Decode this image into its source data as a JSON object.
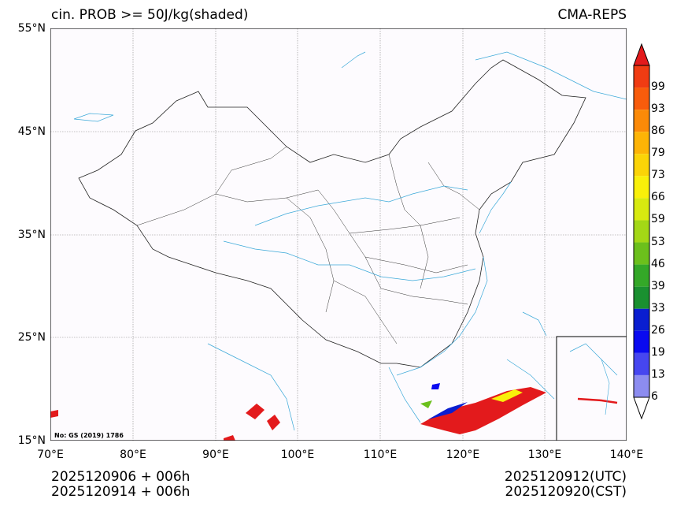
{
  "title_left": "cin. PROB >= 50J/kg(shaded)",
  "title_right": "CMA-REPS",
  "latitude_labels": [
    "55°N",
    "45°N",
    "35°N",
    "25°N",
    "15°N"
  ],
  "longitude_labels": [
    "70°E",
    "80°E",
    "90°E",
    "100°E",
    "110°E",
    "120°E",
    "130°E",
    "140°E"
  ],
  "map_note": "No: GS (2019) 1786",
  "footer": {
    "init_time_utc": "2025120906  +  006h",
    "init_time_cst": "2025120914  +  006h",
    "valid_time_utc": "2025120912(UTC)",
    "valid_time_cst": "2025120920(CST)"
  },
  "colorbar": {
    "labels": [
      "99",
      "93",
      "86",
      "79",
      "73",
      "66",
      "59",
      "53",
      "46",
      "39",
      "33",
      "26",
      "19",
      "13",
      "6"
    ],
    "colors": [
      "#e31a1c",
      "#f03c13",
      "#f85c0c",
      "#fb8a08",
      "#fdb406",
      "#fbd407",
      "#f9f00a",
      "#d8ea10",
      "#a4d816",
      "#6cc01c",
      "#34a828",
      "#1a9030",
      "#0a1ed0",
      "#0a0af0",
      "#4646f0",
      "#8c8cf0",
      "#b4b4f4"
    ]
  }
}
